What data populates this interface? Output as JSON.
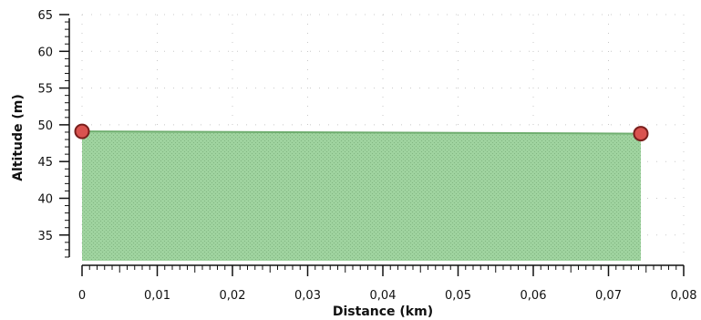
{
  "chart_data": {
    "type": "area",
    "title": "",
    "xlabel": "Distance (km)",
    "ylabel": "Altitude (m)",
    "xlim": [
      0,
      0.08
    ],
    "ylim": [
      31.5,
      65
    ],
    "x_ticks": [
      0,
      0.01,
      0.02,
      0.03,
      0.04,
      0.05,
      0.06,
      0.07,
      0.08
    ],
    "x_tick_labels": [
      "0",
      "0,01",
      "0,02",
      "0,03",
      "0,04",
      "0,05",
      "0,06",
      "0,07",
      "0,08"
    ],
    "y_ticks": [
      35,
      40,
      45,
      50,
      55,
      60,
      65
    ],
    "y_tick_labels": [
      "35",
      "40",
      "45",
      "50",
      "55",
      "60",
      "65"
    ],
    "series": [
      {
        "x": [
          0,
          0.0743
        ],
        "y": [
          49.1,
          48.8
        ]
      }
    ],
    "markers": [
      {
        "x": 0,
        "y": 49.1
      },
      {
        "x": 0.0743,
        "y": 48.8
      }
    ],
    "grid": true,
    "colors": {
      "area_fill": "#9fd39f",
      "area_edge": "#6fae6f",
      "marker_fill": "#d9534f",
      "marker_edge": "#7a1f1c",
      "axis": "#111111",
      "grid": "#c8c8c8"
    }
  }
}
